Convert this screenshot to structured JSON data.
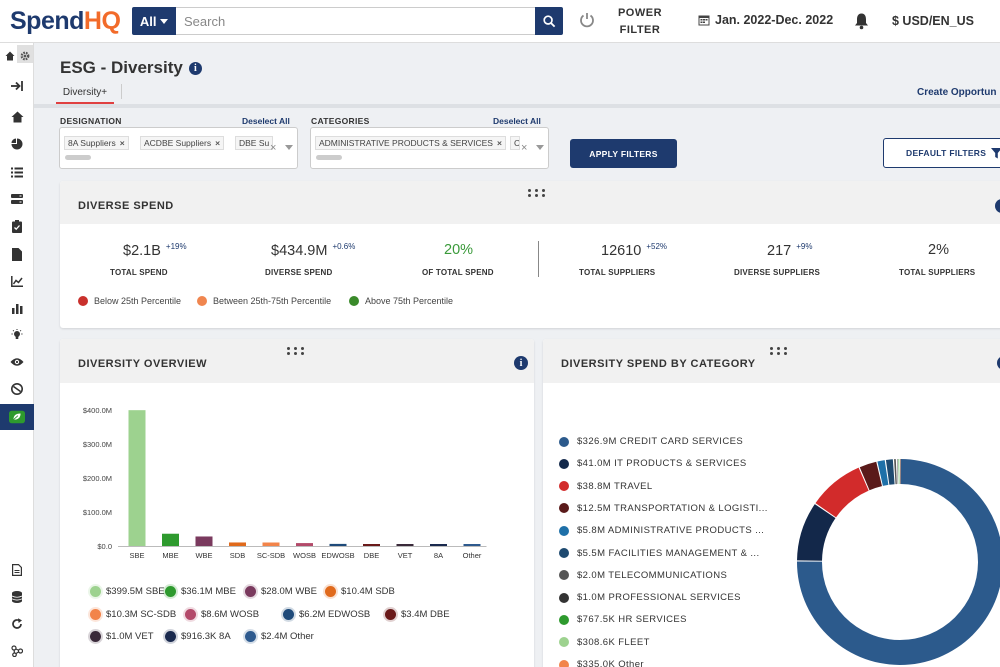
{
  "app": {
    "logo_part1": "Spend",
    "logo_part2": "HQ",
    "search_scope": "All",
    "search_placeholder": "Search",
    "power_filter_line1": "POWER",
    "power_filter_line2": "FILTER",
    "date_range": "Jan. 2022-Dec. 2022",
    "currency": "$ USD/EN_US"
  },
  "page": {
    "title": "ESG - Diversity",
    "tab": "Diversity+",
    "create_link": "Create Opportun"
  },
  "filters": {
    "designation_label": "DESIGNATION",
    "designation_deselect": "Deselect All",
    "designation_chips": [
      "8A Suppliers",
      "ACDBE Suppliers",
      "DBE Su"
    ],
    "categories_label": "CATEGORIES",
    "categories_deselect": "Deselect All",
    "categories_chips": [
      "ADMINISTRATIVE PRODUCTS & SERVICES",
      "C"
    ],
    "apply_label": "APPLY FILTERS",
    "default_label": "DEFAULT FILTERS"
  },
  "diverse_spend": {
    "title": "DIVERSE SPEND",
    "kpis": [
      {
        "value": "$2.1B",
        "change": "+19%",
        "label": "TOTAL SPEND"
      },
      {
        "value": "$434.9M",
        "change": "+0.6%",
        "label": "DIVERSE SPEND"
      },
      {
        "value": "20%",
        "change": "",
        "label": "OF TOTAL SPEND"
      },
      {
        "value": "12610",
        "change": "+52%",
        "label": "TOTAL SUPPLIERS"
      },
      {
        "value": "217",
        "change": "+9%",
        "label": "DIVERSE SUPPLIERS"
      },
      {
        "value": "2%",
        "change": "",
        "label": "TOTAL SUPPLIERS"
      }
    ],
    "percentile_legend": [
      {
        "label": "Below 25th Percentile",
        "color": "#c9302c"
      },
      {
        "label": "Between 25th-75th Percentile",
        "color": "#f0864f"
      },
      {
        "label": "Above 75th Percentile",
        "color": "#3a8a2a"
      }
    ]
  },
  "diversity_overview": {
    "title": "DIVERSITY OVERVIEW",
    "legend": [
      {
        "label": "$399.5M SBE",
        "color": "#9dd28f"
      },
      {
        "label": "$36.1M MBE",
        "color": "#2e9a2e"
      },
      {
        "label": "$28.0M WBE",
        "color": "#7a3a5e"
      },
      {
        "label": "$10.4M SDB",
        "color": "#e06a1c"
      },
      {
        "label": "$10.3M SC-SDB",
        "color": "#f2844a"
      },
      {
        "label": "$8.6M WOSB",
        "color": "#b34a6a"
      },
      {
        "label": "$6.2M EDWOSB",
        "color": "#1e4a7a"
      },
      {
        "label": "$3.4M DBE",
        "color": "#6a1a1a"
      },
      {
        "label": "$1.0M VET",
        "color": "#3a2a3a"
      },
      {
        "label": "$916.3K 8A",
        "color": "#1a2a4e"
      },
      {
        "label": "$2.4M Other",
        "color": "#2e5a8e"
      }
    ]
  },
  "chart_data": {
    "type": "bar",
    "categories": [
      "SBE",
      "MBE",
      "WBE",
      "SDB",
      "SC-SDB",
      "WOSB",
      "EDWOSB",
      "DBE",
      "VET",
      "8A",
      "Other"
    ],
    "values": [
      399.5,
      36.1,
      28.0,
      10.4,
      10.3,
      8.6,
      6.2,
      3.4,
      1.0,
      0.9163,
      2.4
    ],
    "colors": [
      "#9dd28f",
      "#2e9a2e",
      "#7a3a5e",
      "#e06a1c",
      "#f2844a",
      "#b34a6a",
      "#1e4a7a",
      "#6a1a1a",
      "#3a2a3a",
      "#1a2a4e",
      "#2e5a8e"
    ],
    "y_ticks": [
      "$0.0",
      "$100.0M",
      "$200.0M",
      "$300.0M",
      "$400.0M"
    ],
    "y_tick_values": [
      0,
      100,
      200,
      300,
      400
    ],
    "ylim": [
      0,
      400
    ],
    "title": "",
    "xlabel": "",
    "ylabel": ""
  },
  "category_spend": {
    "title": "DIVERSITY SPEND BY CATEGORY",
    "items": [
      {
        "label": "$326.9M CREDIT CARD SERVICES",
        "value": 326.9,
        "color": "#2c5a8c"
      },
      {
        "label": "$41.0M IT PRODUCTS & SERVICES",
        "value": 41.0,
        "color": "#13284a"
      },
      {
        "label": "$38.8M TRAVEL",
        "color": "#d22b2b",
        "value": 38.8
      },
      {
        "label": "$12.5M TRANSPORTATION & LOGISTI...",
        "value": 12.5,
        "color": "#5a1a1a"
      },
      {
        "label": "$5.8M ADMINISTRATIVE PRODUCTS ...",
        "value": 5.8,
        "color": "#1e70a8"
      },
      {
        "label": "$5.5M FACILITIES MANAGEMENT & ...",
        "value": 5.5,
        "color": "#1e4a70"
      },
      {
        "label": "$2.0M TELECOMMUNICATIONS",
        "value": 2.0,
        "color": "#555555"
      },
      {
        "label": "$1.0M PROFESSIONAL SERVICES",
        "value": 1.0,
        "color": "#333333"
      },
      {
        "label": "$767.5K HR SERVICES",
        "value": 0.7675,
        "color": "#2e9a2e"
      },
      {
        "label": "$308.6K FLEET",
        "value": 0.3086,
        "color": "#9dd28f"
      },
      {
        "label": "$335.0K Other",
        "value": 0.335,
        "color": "#f2844a"
      }
    ]
  }
}
